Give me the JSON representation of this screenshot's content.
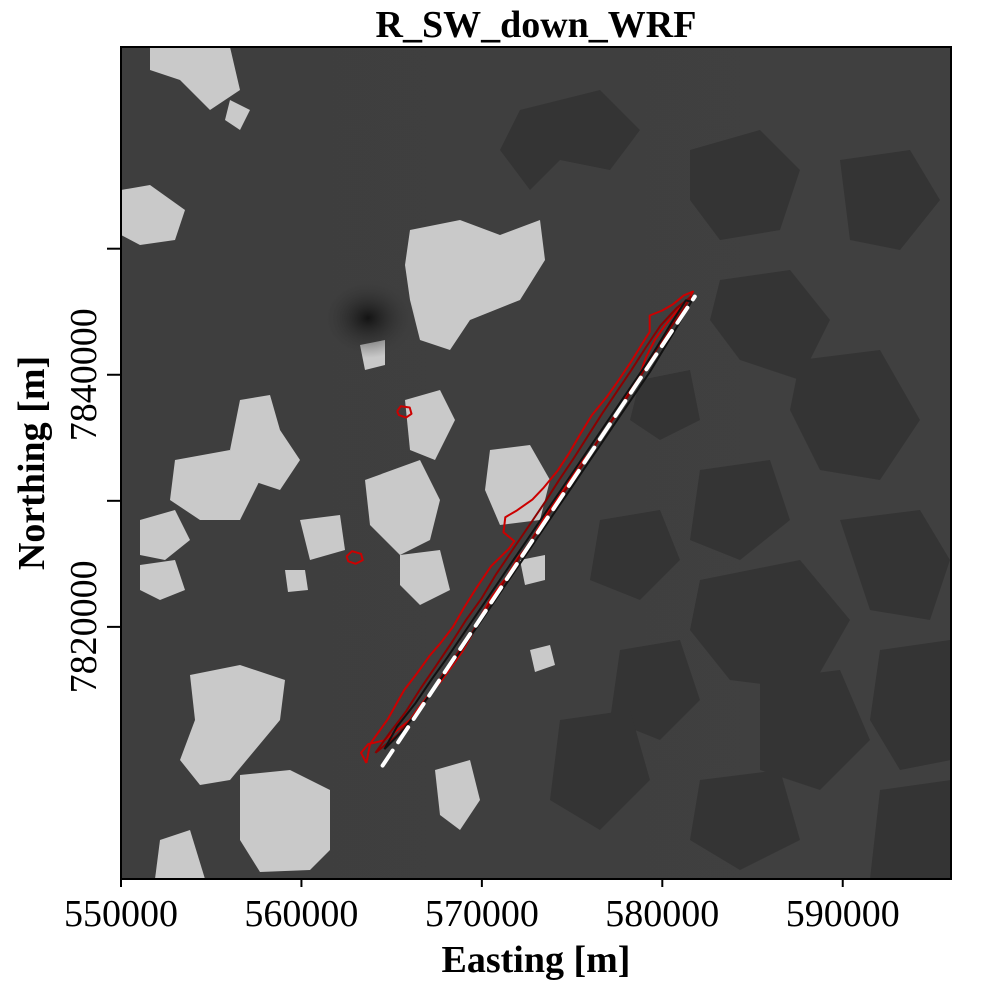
{
  "chart_data": {
    "type": "heatmap",
    "title": "R_SW_down_WRF",
    "xlabel": "Easting [m]",
    "ylabel": "Northing [m]",
    "xlim": [
      550000,
      596000
    ],
    "ylim": [
      7800000,
      7866000
    ],
    "x_ticks": [
      550000,
      560000,
      570000,
      580000,
      590000
    ],
    "x_tick_labels": [
      "550000",
      "560000",
      "570000",
      "580000",
      "590000"
    ],
    "y_ticks": [
      7820000,
      7840000
    ],
    "y_tick_labels": [
      "7820000",
      "7840000"
    ],
    "y_minor_ticks": [
      7850000,
      7830000
    ],
    "grid": false,
    "legend": "none",
    "colors": {
      "background_field": "#3d3d3d",
      "bright_patches": "#c9c9c9",
      "dark_patches": "#333333",
      "contour_red": "#cc0000",
      "contour_dark_red": "#8b0000",
      "contour_black": "#111111",
      "transect_line": "#ffffff"
    },
    "transect": {
      "style": "white-dashed",
      "start": [
        564500,
        7809000
      ],
      "end": [
        581800,
        7846200
      ]
    },
    "series": [
      {
        "type": "contour",
        "color": "red",
        "points": [
          [
            563600,
            7809200
          ],
          [
            563300,
            7810000
          ],
          [
            563700,
            7810700
          ],
          [
            564600,
            7811000
          ],
          [
            565300,
            7811800
          ],
          [
            566000,
            7812600
          ],
          [
            566500,
            7813600
          ],
          [
            567000,
            7814500
          ],
          [
            567800,
            7815800
          ],
          [
            568400,
            7817000
          ],
          [
            568900,
            7818000
          ],
          [
            569500,
            7819500
          ],
          [
            570000,
            7821000
          ],
          [
            570600,
            7822500
          ],
          [
            571400,
            7824000
          ],
          [
            572000,
            7825500
          ],
          [
            572600,
            7826500
          ],
          [
            573400,
            7828500
          ],
          [
            574100,
            7830000
          ],
          [
            574700,
            7831200
          ],
          [
            575300,
            7832700
          ],
          [
            576100,
            7834000
          ],
          [
            576800,
            7835600
          ],
          [
            577500,
            7836900
          ],
          [
            578000,
            7838200
          ],
          [
            578700,
            7839800
          ],
          [
            579100,
            7841400
          ],
          [
            579600,
            7842800
          ],
          [
            580200,
            7844000
          ],
          [
            580900,
            7845200
          ],
          [
            581500,
            7846100
          ],
          [
            581700,
            7846600
          ],
          [
            581200,
            7846300
          ],
          [
            580600,
            7845600
          ],
          [
            580000,
            7845100
          ],
          [
            579300,
            7844700
          ],
          [
            579300,
            7843400
          ],
          [
            578900,
            7842500
          ],
          [
            578300,
            7841100
          ],
          [
            577500,
            7839400
          ],
          [
            576900,
            7838200
          ],
          [
            576100,
            7836800
          ],
          [
            575500,
            7835400
          ],
          [
            574800,
            7833700
          ],
          [
            574200,
            7832400
          ],
          [
            573400,
            7831000
          ],
          [
            572800,
            7830100
          ],
          [
            571900,
            7829200
          ],
          [
            571300,
            7828700
          ],
          [
            571200,
            7827500
          ],
          [
            571800,
            7826800
          ],
          [
            571500,
            7826200
          ],
          [
            570500,
            7824800
          ],
          [
            569700,
            7823100
          ],
          [
            569000,
            7821500
          ],
          [
            568400,
            7820000
          ],
          [
            567700,
            7818700
          ],
          [
            567100,
            7817700
          ],
          [
            566400,
            7816300
          ],
          [
            565700,
            7815000
          ],
          [
            565300,
            7814000
          ],
          [
            564800,
            7812700
          ],
          [
            564300,
            7811700
          ],
          [
            563800,
            7810700
          ],
          [
            563600,
            7809200
          ]
        ]
      },
      {
        "type": "contour",
        "color": "dark-red",
        "points": [
          [
            564100,
            7810000
          ],
          [
            565300,
            7811400
          ],
          [
            566300,
            7813000
          ],
          [
            567300,
            7815000
          ],
          [
            568000,
            7816600
          ],
          [
            568900,
            7818400
          ],
          [
            569500,
            7819600
          ],
          [
            570400,
            7821800
          ],
          [
            571300,
            7823700
          ],
          [
            572100,
            7825600
          ],
          [
            573100,
            7827600
          ],
          [
            573900,
            7829400
          ],
          [
            574800,
            7831200
          ],
          [
            575600,
            7832900
          ],
          [
            576400,
            7834700
          ],
          [
            577200,
            7836400
          ],
          [
            578000,
            7838100
          ],
          [
            578800,
            7839900
          ],
          [
            579500,
            7841600
          ],
          [
            580300,
            7843400
          ],
          [
            581100,
            7845100
          ],
          [
            581600,
            7846200
          ],
          [
            580800,
            7845300
          ],
          [
            579900,
            7843900
          ],
          [
            579100,
            7842200
          ],
          [
            578300,
            7840400
          ],
          [
            577500,
            7838700
          ],
          [
            576700,
            7837000
          ],
          [
            575900,
            7835200
          ],
          [
            575100,
            7833400
          ],
          [
            574300,
            7831700
          ],
          [
            573500,
            7829900
          ],
          [
            572600,
            7828000
          ],
          [
            571700,
            7826100
          ],
          [
            570800,
            7824200
          ],
          [
            570000,
            7822300
          ],
          [
            569100,
            7820500
          ],
          [
            568300,
            7818700
          ],
          [
            567500,
            7817000
          ],
          [
            566600,
            7815100
          ],
          [
            565800,
            7813300
          ],
          [
            564900,
            7811600
          ],
          [
            564100,
            7810000
          ]
        ]
      },
      {
        "type": "contour",
        "color": "black",
        "points": [
          [
            564600,
            7810300
          ],
          [
            565700,
            7811900
          ],
          [
            566700,
            7813800
          ],
          [
            567600,
            7815600
          ],
          [
            568500,
            7817400
          ],
          [
            569400,
            7819300
          ],
          [
            570300,
            7821200
          ],
          [
            571200,
            7823100
          ],
          [
            572100,
            7825000
          ],
          [
            573000,
            7826900
          ],
          [
            573900,
            7828800
          ],
          [
            574800,
            7830700
          ],
          [
            575700,
            7832600
          ],
          [
            576600,
            7834500
          ],
          [
            577500,
            7836400
          ],
          [
            578400,
            7838300
          ],
          [
            579300,
            7840200
          ],
          [
            580100,
            7842100
          ],
          [
            580900,
            7844000
          ],
          [
            581600,
            7845800
          ],
          [
            581300,
            7845900
          ],
          [
            580500,
            7844100
          ],
          [
            579700,
            7842200
          ],
          [
            578900,
            7840400
          ],
          [
            578000,
            7838500
          ],
          [
            577100,
            7836600
          ],
          [
            576200,
            7834700
          ],
          [
            575300,
            7832800
          ],
          [
            574400,
            7830900
          ],
          [
            573500,
            7829000
          ],
          [
            572600,
            7827100
          ],
          [
            571700,
            7825200
          ],
          [
            570800,
            7823300
          ],
          [
            569900,
            7821400
          ],
          [
            569000,
            7819500
          ],
          [
            568100,
            7817600
          ],
          [
            567200,
            7815800
          ],
          [
            566300,
            7813900
          ],
          [
            565300,
            7812100
          ],
          [
            564600,
            7810300
          ]
        ]
      },
      {
        "type": "contour",
        "color": "red",
        "points": [
          [
            565300,
            7837100
          ],
          [
            565500,
            7837500
          ],
          [
            566000,
            7837400
          ],
          [
            566100,
            7836900
          ],
          [
            565800,
            7836600
          ],
          [
            565400,
            7836800
          ],
          [
            565300,
            7837100
          ]
        ]
      },
      {
        "type": "contour",
        "color": "red",
        "points": [
          [
            562500,
            7825600
          ],
          [
            562800,
            7826000
          ],
          [
            563300,
            7825800
          ],
          [
            563400,
            7825300
          ],
          [
            563000,
            7825000
          ],
          [
            562600,
            7825200
          ],
          [
            562500,
            7825600
          ]
        ]
      }
    ]
  }
}
